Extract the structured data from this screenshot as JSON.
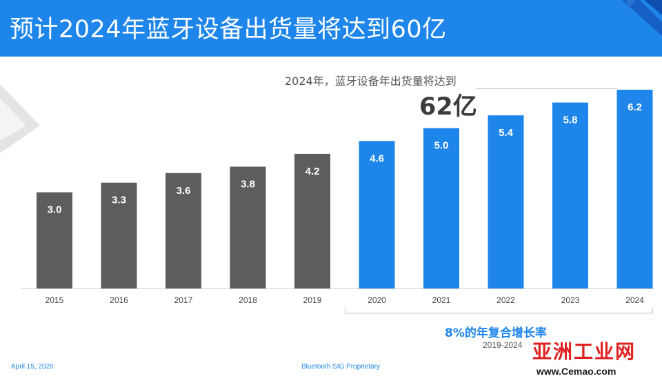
{
  "header": {
    "title": "预计2024年蓝牙设备出货量将达到60亿"
  },
  "callout": {
    "label": "2024年，蓝牙设备年出货量将达到",
    "value": "62亿"
  },
  "cagr": {
    "label": "8%的年复合增长率",
    "period": "2019-2024"
  },
  "footer": {
    "date": "April 15, 2020",
    "source": "Bluetooth SIG Proprietary"
  },
  "watermark": {
    "title": "亚洲工业网",
    "url": "www.Cemao.com"
  },
  "colors": {
    "header_bg": "#1e86ea",
    "historical_bar": "#5d5d60",
    "forecast_bar": "#1e86ea",
    "bar_label": "#ffffff"
  },
  "chart_data": {
    "type": "bar",
    "categories": [
      "2015",
      "2016",
      "2017",
      "2018",
      "2019",
      "2020",
      "2021",
      "2022",
      "2023",
      "2024"
    ],
    "values": [
      3.0,
      3.3,
      3.6,
      3.8,
      4.2,
      4.6,
      5.0,
      5.4,
      5.8,
      6.2
    ],
    "labels": [
      "3.0",
      "3.3",
      "3.6",
      "3.8",
      "4.2",
      "4.6",
      "5.0",
      "5.4",
      "5.8",
      "6.2"
    ],
    "historical_count": 5,
    "title": "",
    "xlabel": "",
    "ylabel": "",
    "ylim": [
      0,
      6.2
    ],
    "grid": false,
    "legend": "none"
  }
}
